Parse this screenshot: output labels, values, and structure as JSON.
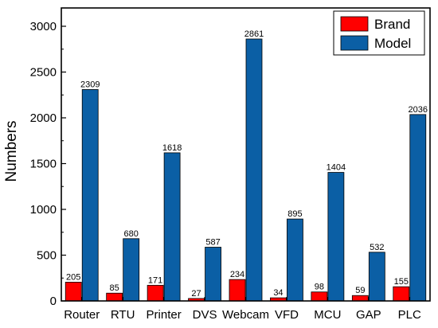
{
  "chart_data": {
    "type": "bar",
    "title": "",
    "xlabel": "",
    "ylabel": "Numbers",
    "ylim": [
      0,
      3200
    ],
    "yticks": [
      0,
      500,
      1000,
      1500,
      2000,
      2500,
      3000
    ],
    "grid": false,
    "legend_position": "top-right",
    "categories": [
      "Router",
      "RTU",
      "Printer",
      "DVS",
      "Webcam",
      "VFD",
      "MCU",
      "GAP",
      "PLC"
    ],
    "series": [
      {
        "name": "Brand",
        "color": "#ff0000",
        "values": [
          205,
          85,
          171,
          27,
          234,
          34,
          98,
          59,
          155
        ]
      },
      {
        "name": "Model",
        "color": "#0b5fa5",
        "values": [
          2309,
          680,
          1618,
          587,
          2861,
          895,
          1404,
          532,
          2036
        ]
      }
    ]
  }
}
